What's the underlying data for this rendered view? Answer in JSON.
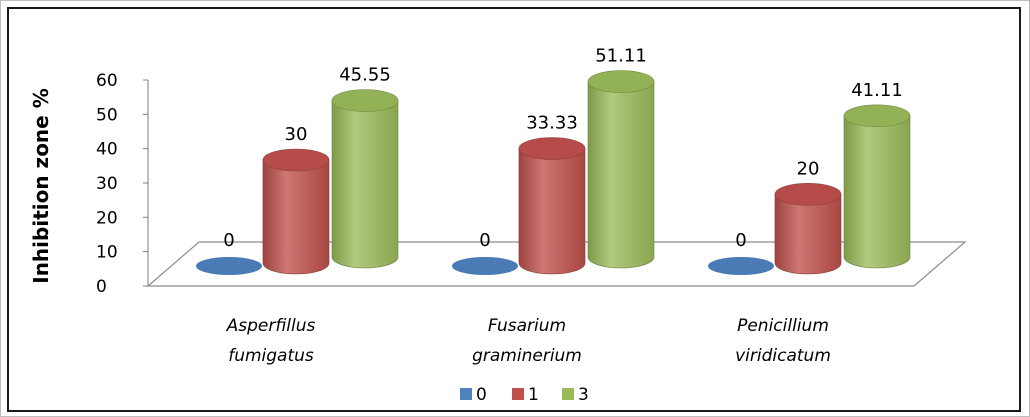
{
  "chart_data": {
    "type": "bar",
    "style": "3d-cylinder",
    "ylabel": "Inhibition zone %",
    "xlabel": "",
    "ylim": [
      0,
      60
    ],
    "yticks": [
      0,
      10,
      20,
      30,
      40,
      50,
      60
    ],
    "categories": [
      [
        "Asperfillus",
        "fumigatus"
      ],
      [
        "Fusarium",
        "graminerium"
      ],
      [
        "Penicillium",
        "viridicatum"
      ]
    ],
    "series": [
      {
        "name": "0",
        "color": "#4f81bd",
        "values": [
          0,
          0,
          0
        ],
        "labels": [
          "0",
          "0",
          "0"
        ]
      },
      {
        "name": "1",
        "color": "#c0504d",
        "values": [
          30,
          33.33,
          20
        ],
        "labels": [
          "30",
          "33.33",
          "20"
        ]
      },
      {
        "name": "3",
        "color": "#9bbb59",
        "values": [
          45.55,
          51.11,
          41.11
        ],
        "labels": [
          "45.55",
          "51.11",
          "41.11"
        ]
      }
    ],
    "legend_position": "bottom"
  }
}
